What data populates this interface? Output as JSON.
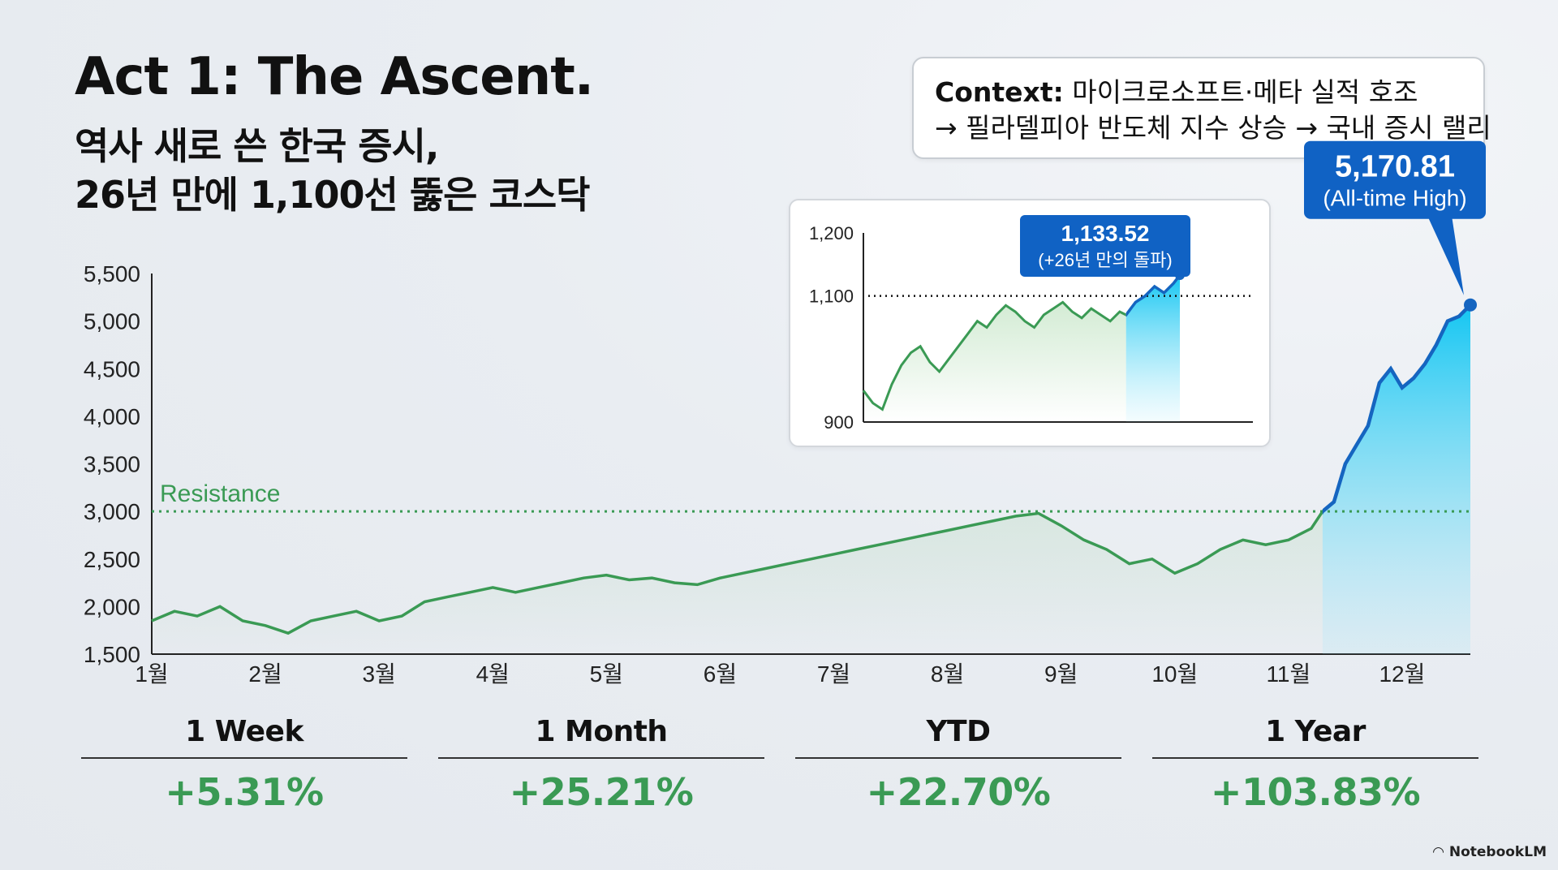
{
  "header": {
    "title": "Act 1: The Ascent.",
    "subtitle_line1": "역사 새로 쓴 한국 증시,",
    "subtitle_line2": "26년 만에 1,100선 뚫은 코스닥"
  },
  "context": {
    "label": "Context:",
    "line1": "마이크로소프트·메타 실적 호조",
    "line2": "→ 필라델피아 반도체 지수 상승 → 국내 증시 랠리"
  },
  "stats": [
    {
      "label": "1 Week",
      "value": "+5.31%"
    },
    {
      "label": "1 Month",
      "value": "+25.21%"
    },
    {
      "label": "YTD",
      "value": "+22.70%"
    },
    {
      "label": "1 Year",
      "value": "+103.83%"
    }
  ],
  "brand": "NotebookLM",
  "colors": {
    "green": "#3a9a54",
    "blue": "#1565c0",
    "cyan": "#1ec8f0",
    "callout": "#1062c4"
  },
  "chart_data": [
    {
      "type": "area",
      "ylim": [
        1500,
        5500
      ],
      "yticks": [
        "1,500",
        "2,000",
        "2,500",
        "3,000",
        "3,500",
        "4,000",
        "4,500",
        "5,000",
        "5,500"
      ],
      "ytick_values": [
        1500,
        2000,
        2500,
        3000,
        3500,
        4000,
        4500,
        5000,
        5500
      ],
      "categories": [
        "1월",
        "2월",
        "3월",
        "4월",
        "5월",
        "6월",
        "7월",
        "8월",
        "9월",
        "10월",
        "11월",
        "12월"
      ],
      "xlim": [
        0,
        11.6
      ],
      "reference_line": {
        "label": "Resistance",
        "value": 3000
      },
      "breakout_x": 10.3,
      "series": [
        {
          "x": [
            0,
            0.2,
            0.4,
            0.6,
            0.8,
            1.0,
            1.2,
            1.4,
            1.6,
            1.8,
            2.0,
            2.2,
            2.4,
            2.6,
            2.8,
            3.0,
            3.2,
            3.4,
            3.6,
            3.8,
            4.0,
            4.2,
            4.4,
            4.6,
            4.8,
            5.0,
            5.2,
            5.4,
            5.6,
            5.8,
            6.0,
            6.2,
            6.4,
            6.6,
            6.8,
            7.0,
            7.2,
            7.4,
            7.6,
            7.8,
            8.0,
            8.2,
            8.4,
            8.6,
            8.8,
            9.0,
            9.2,
            9.4,
            9.6,
            9.8,
            10.0,
            10.2,
            10.3,
            10.4,
            10.5,
            10.6,
            10.7,
            10.8,
            10.9,
            11.0,
            11.1,
            11.2,
            11.3,
            11.4,
            11.5,
            11.6
          ],
          "y": [
            1850,
            1950,
            1900,
            2000,
            1850,
            1800,
            1720,
            1850,
            1900,
            1950,
            1850,
            1900,
            2050,
            2100,
            2150,
            2200,
            2150,
            2200,
            2250,
            2300,
            2330,
            2280,
            2300,
            2250,
            2230,
            2300,
            2350,
            2400,
            2450,
            2500,
            2550,
            2600,
            2650,
            2700,
            2750,
            2800,
            2850,
            2900,
            2950,
            2980,
            2850,
            2700,
            2600,
            2450,
            2500,
            2350,
            2450,
            2600,
            2700,
            2650,
            2700,
            2820,
            3000,
            3100,
            3500,
            3700,
            3900,
            4350,
            4500,
            4300,
            4400,
            4550,
            4750,
            5000,
            5050,
            5170
          ]
        }
      ],
      "callout": {
        "value": "5,170.81",
        "label": "(All-time High)"
      }
    },
    {
      "type": "area",
      "ylim": [
        900,
        1200
      ],
      "yticks": [
        "900",
        "1,100",
        "1,200"
      ],
      "ytick_values": [
        900,
        1100,
        1200
      ],
      "reference_line": {
        "value": 1100
      },
      "breakout_x": 0.83,
      "series": [
        {
          "x": [
            0,
            0.03,
            0.06,
            0.09,
            0.12,
            0.15,
            0.18,
            0.21,
            0.24,
            0.27,
            0.3,
            0.33,
            0.36,
            0.39,
            0.42,
            0.45,
            0.48,
            0.51,
            0.54,
            0.57,
            0.6,
            0.63,
            0.66,
            0.69,
            0.72,
            0.75,
            0.78,
            0.81,
            0.83,
            0.86,
            0.89,
            0.92,
            0.95,
            0.98,
            1.0
          ],
          "y": [
            950,
            930,
            920,
            960,
            990,
            1010,
            1020,
            995,
            980,
            1000,
            1020,
            1040,
            1060,
            1050,
            1070,
            1085,
            1075,
            1060,
            1050,
            1070,
            1080,
            1090,
            1075,
            1065,
            1080,
            1070,
            1060,
            1075,
            1070,
            1090,
            1100,
            1115,
            1105,
            1120,
            1133
          ]
        }
      ],
      "callout": {
        "value": "1,133.52",
        "label": "(+26년 만의 돌파)"
      }
    }
  ]
}
